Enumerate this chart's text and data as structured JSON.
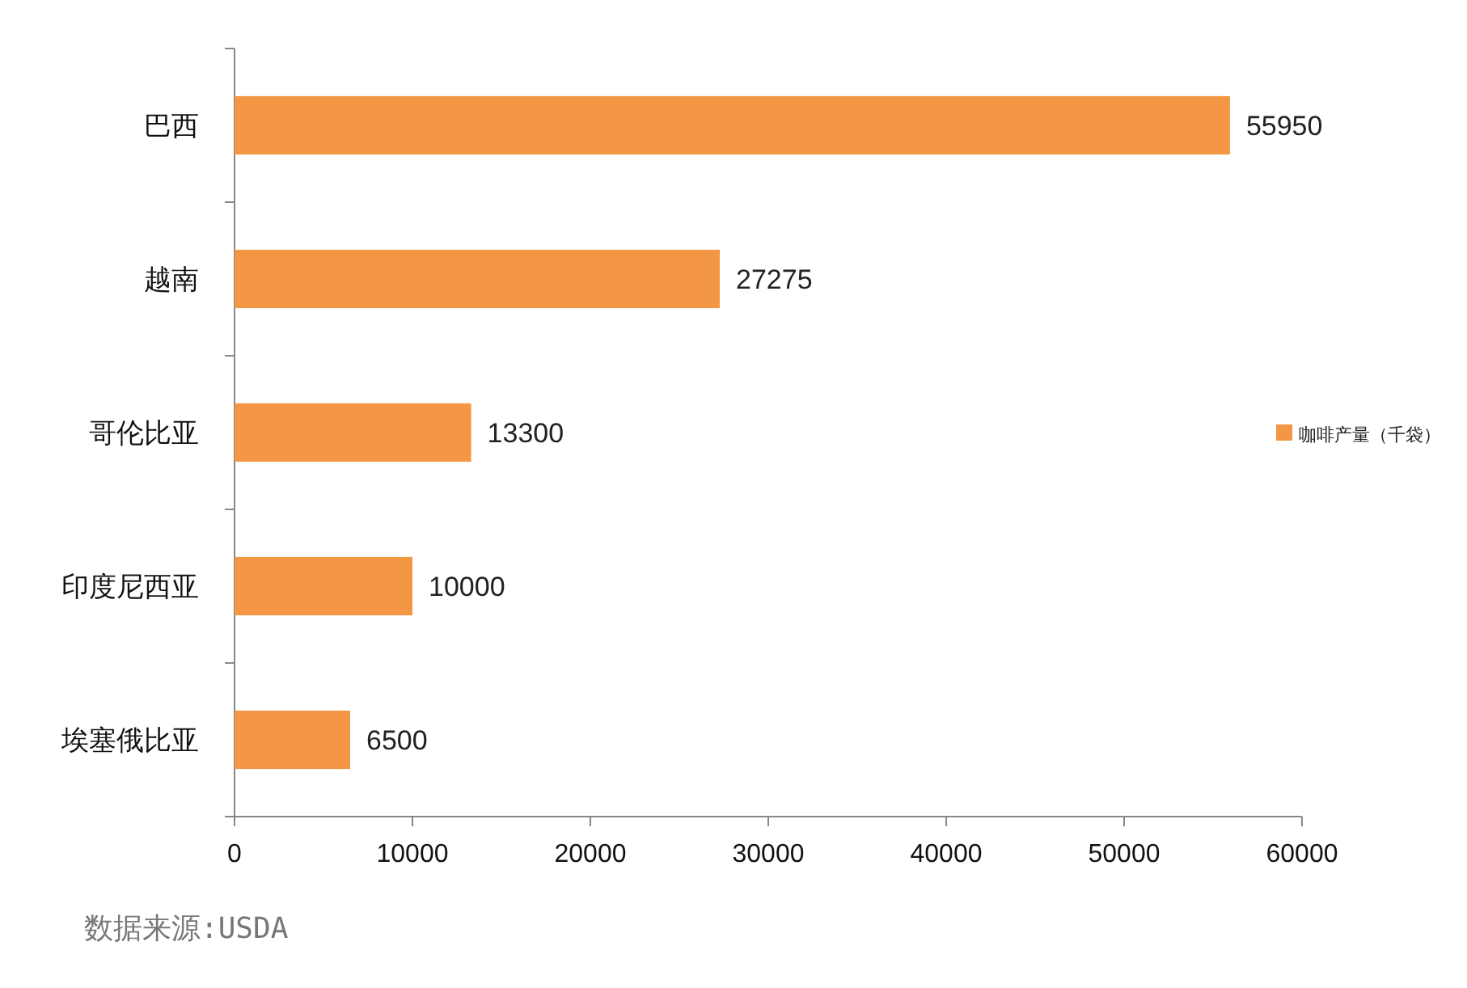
{
  "chart_data": {
    "type": "bar",
    "orientation": "horizontal",
    "categories": [
      "巴西",
      "越南",
      "哥伦比亚",
      "印度尼西亚",
      "埃塞俄比亚"
    ],
    "series": [
      {
        "name": "咖啡产量（千袋）",
        "color": "#f39744",
        "values": [
          55950,
          27275,
          13300,
          10000,
          6500
        ]
      }
    ],
    "xlim": [
      0,
      60000
    ],
    "xticks": [
      0,
      10000,
      20000,
      30000,
      40000,
      50000,
      60000
    ],
    "data_labels": true,
    "grid": false,
    "legend": "right",
    "annotations": [
      "数据来源:USDA"
    ]
  }
}
